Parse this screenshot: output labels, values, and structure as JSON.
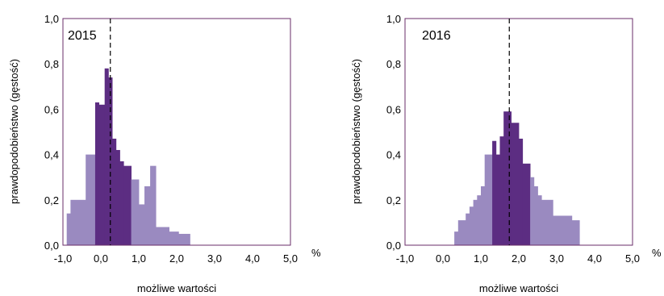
{
  "chart_data": [
    {
      "type": "histogram",
      "year_label": "2015",
      "xlabel": "możliwe wartości",
      "ylabel": "prawdopodobieństwo (gęstość)",
      "unit_label": "%",
      "xlim": [
        -1.0,
        5.0
      ],
      "ylim": [
        0.0,
        1.0
      ],
      "x_ticks": [
        "-1,0",
        "0,0",
        "1,0",
        "2,0",
        "3,0",
        "4,0",
        "5,0"
      ],
      "y_ticks": [
        "0,0",
        "0,2",
        "0,4",
        "0,6",
        "0,8",
        "1,0"
      ],
      "marker_x": 0.25,
      "colors": {
        "light": "#9a8ac0",
        "dark": "#5c2d82",
        "frame": "#6a2e6a"
      },
      "bins": [
        {
          "x0": -0.9,
          "x1": -0.8,
          "y": 0.14,
          "shade": "light"
        },
        {
          "x0": -0.8,
          "x1": -0.4,
          "y": 0.2,
          "shade": "light"
        },
        {
          "x0": -0.4,
          "x1": -0.15,
          "y": 0.4,
          "shade": "light"
        },
        {
          "x0": -0.15,
          "x1": -0.05,
          "y": 0.63,
          "shade": "dark"
        },
        {
          "x0": -0.05,
          "x1": 0.1,
          "y": 0.62,
          "shade": "dark"
        },
        {
          "x0": 0.1,
          "x1": 0.2,
          "y": 0.78,
          "shade": "dark"
        },
        {
          "x0": 0.2,
          "x1": 0.3,
          "y": 0.74,
          "shade": "dark"
        },
        {
          "x0": 0.3,
          "x1": 0.4,
          "y": 0.47,
          "shade": "dark"
        },
        {
          "x0": 0.4,
          "x1": 0.5,
          "y": 0.42,
          "shade": "dark"
        },
        {
          "x0": 0.5,
          "x1": 0.6,
          "y": 0.37,
          "shade": "dark"
        },
        {
          "x0": 0.6,
          "x1": 0.8,
          "y": 0.35,
          "shade": "dark"
        },
        {
          "x0": 0.8,
          "x1": 1.0,
          "y": 0.29,
          "shade": "light"
        },
        {
          "x0": 1.0,
          "x1": 1.15,
          "y": 0.18,
          "shade": "light"
        },
        {
          "x0": 1.15,
          "x1": 1.3,
          "y": 0.26,
          "shade": "light"
        },
        {
          "x0": 1.3,
          "x1": 1.45,
          "y": 0.35,
          "shade": "light"
        },
        {
          "x0": 1.45,
          "x1": 1.8,
          "y": 0.08,
          "shade": "light"
        },
        {
          "x0": 1.8,
          "x1": 2.05,
          "y": 0.06,
          "shade": "light"
        },
        {
          "x0": 2.05,
          "x1": 2.35,
          "y": 0.05,
          "shade": "light"
        }
      ]
    },
    {
      "type": "histogram",
      "year_label": "2016",
      "xlabel": "możliwe wartości",
      "ylabel": "prawdopodobieństwo (gęstość)",
      "unit_label": "%",
      "xlim": [
        -1.0,
        5.0
      ],
      "ylim": [
        0.0,
        1.0
      ],
      "x_ticks": [
        "-1,0",
        "0,0",
        "1,0",
        "2,0",
        "3,0",
        "4,0",
        "5,0"
      ],
      "y_ticks": [
        "0,0",
        "0,2",
        "0,4",
        "0,6",
        "0,8",
        "1,0"
      ],
      "marker_x": 1.75,
      "colors": {
        "light": "#9a8ac0",
        "dark": "#5c2d82",
        "frame": "#6a2e6a"
      },
      "bins": [
        {
          "x0": 0.3,
          "x1": 0.4,
          "y": 0.06,
          "shade": "light"
        },
        {
          "x0": 0.4,
          "x1": 0.6,
          "y": 0.11,
          "shade": "light"
        },
        {
          "x0": 0.6,
          "x1": 0.7,
          "y": 0.14,
          "shade": "light"
        },
        {
          "x0": 0.7,
          "x1": 0.8,
          "y": 0.17,
          "shade": "light"
        },
        {
          "x0": 0.8,
          "x1": 0.9,
          "y": 0.2,
          "shade": "light"
        },
        {
          "x0": 0.9,
          "x1": 1.0,
          "y": 0.22,
          "shade": "light"
        },
        {
          "x0": 1.0,
          "x1": 1.1,
          "y": 0.26,
          "shade": "light"
        },
        {
          "x0": 1.1,
          "x1": 1.3,
          "y": 0.4,
          "shade": "light"
        },
        {
          "x0": 1.3,
          "x1": 1.4,
          "y": 0.46,
          "shade": "dark"
        },
        {
          "x0": 1.4,
          "x1": 1.5,
          "y": 0.4,
          "shade": "dark"
        },
        {
          "x0": 1.5,
          "x1": 1.6,
          "y": 0.48,
          "shade": "dark"
        },
        {
          "x0": 1.6,
          "x1": 1.8,
          "y": 0.59,
          "shade": "dark"
        },
        {
          "x0": 1.8,
          "x1": 2.0,
          "y": 0.54,
          "shade": "dark"
        },
        {
          "x0": 2.0,
          "x1": 2.1,
          "y": 0.47,
          "shade": "dark"
        },
        {
          "x0": 2.1,
          "x1": 2.3,
          "y": 0.36,
          "shade": "dark"
        },
        {
          "x0": 2.3,
          "x1": 2.4,
          "y": 0.3,
          "shade": "light"
        },
        {
          "x0": 2.4,
          "x1": 2.5,
          "y": 0.26,
          "shade": "light"
        },
        {
          "x0": 2.5,
          "x1": 2.6,
          "y": 0.22,
          "shade": "light"
        },
        {
          "x0": 2.6,
          "x1": 2.9,
          "y": 0.2,
          "shade": "light"
        },
        {
          "x0": 2.9,
          "x1": 3.4,
          "y": 0.13,
          "shade": "light"
        },
        {
          "x0": 3.4,
          "x1": 3.6,
          "y": 0.11,
          "shade": "light"
        }
      ]
    }
  ]
}
